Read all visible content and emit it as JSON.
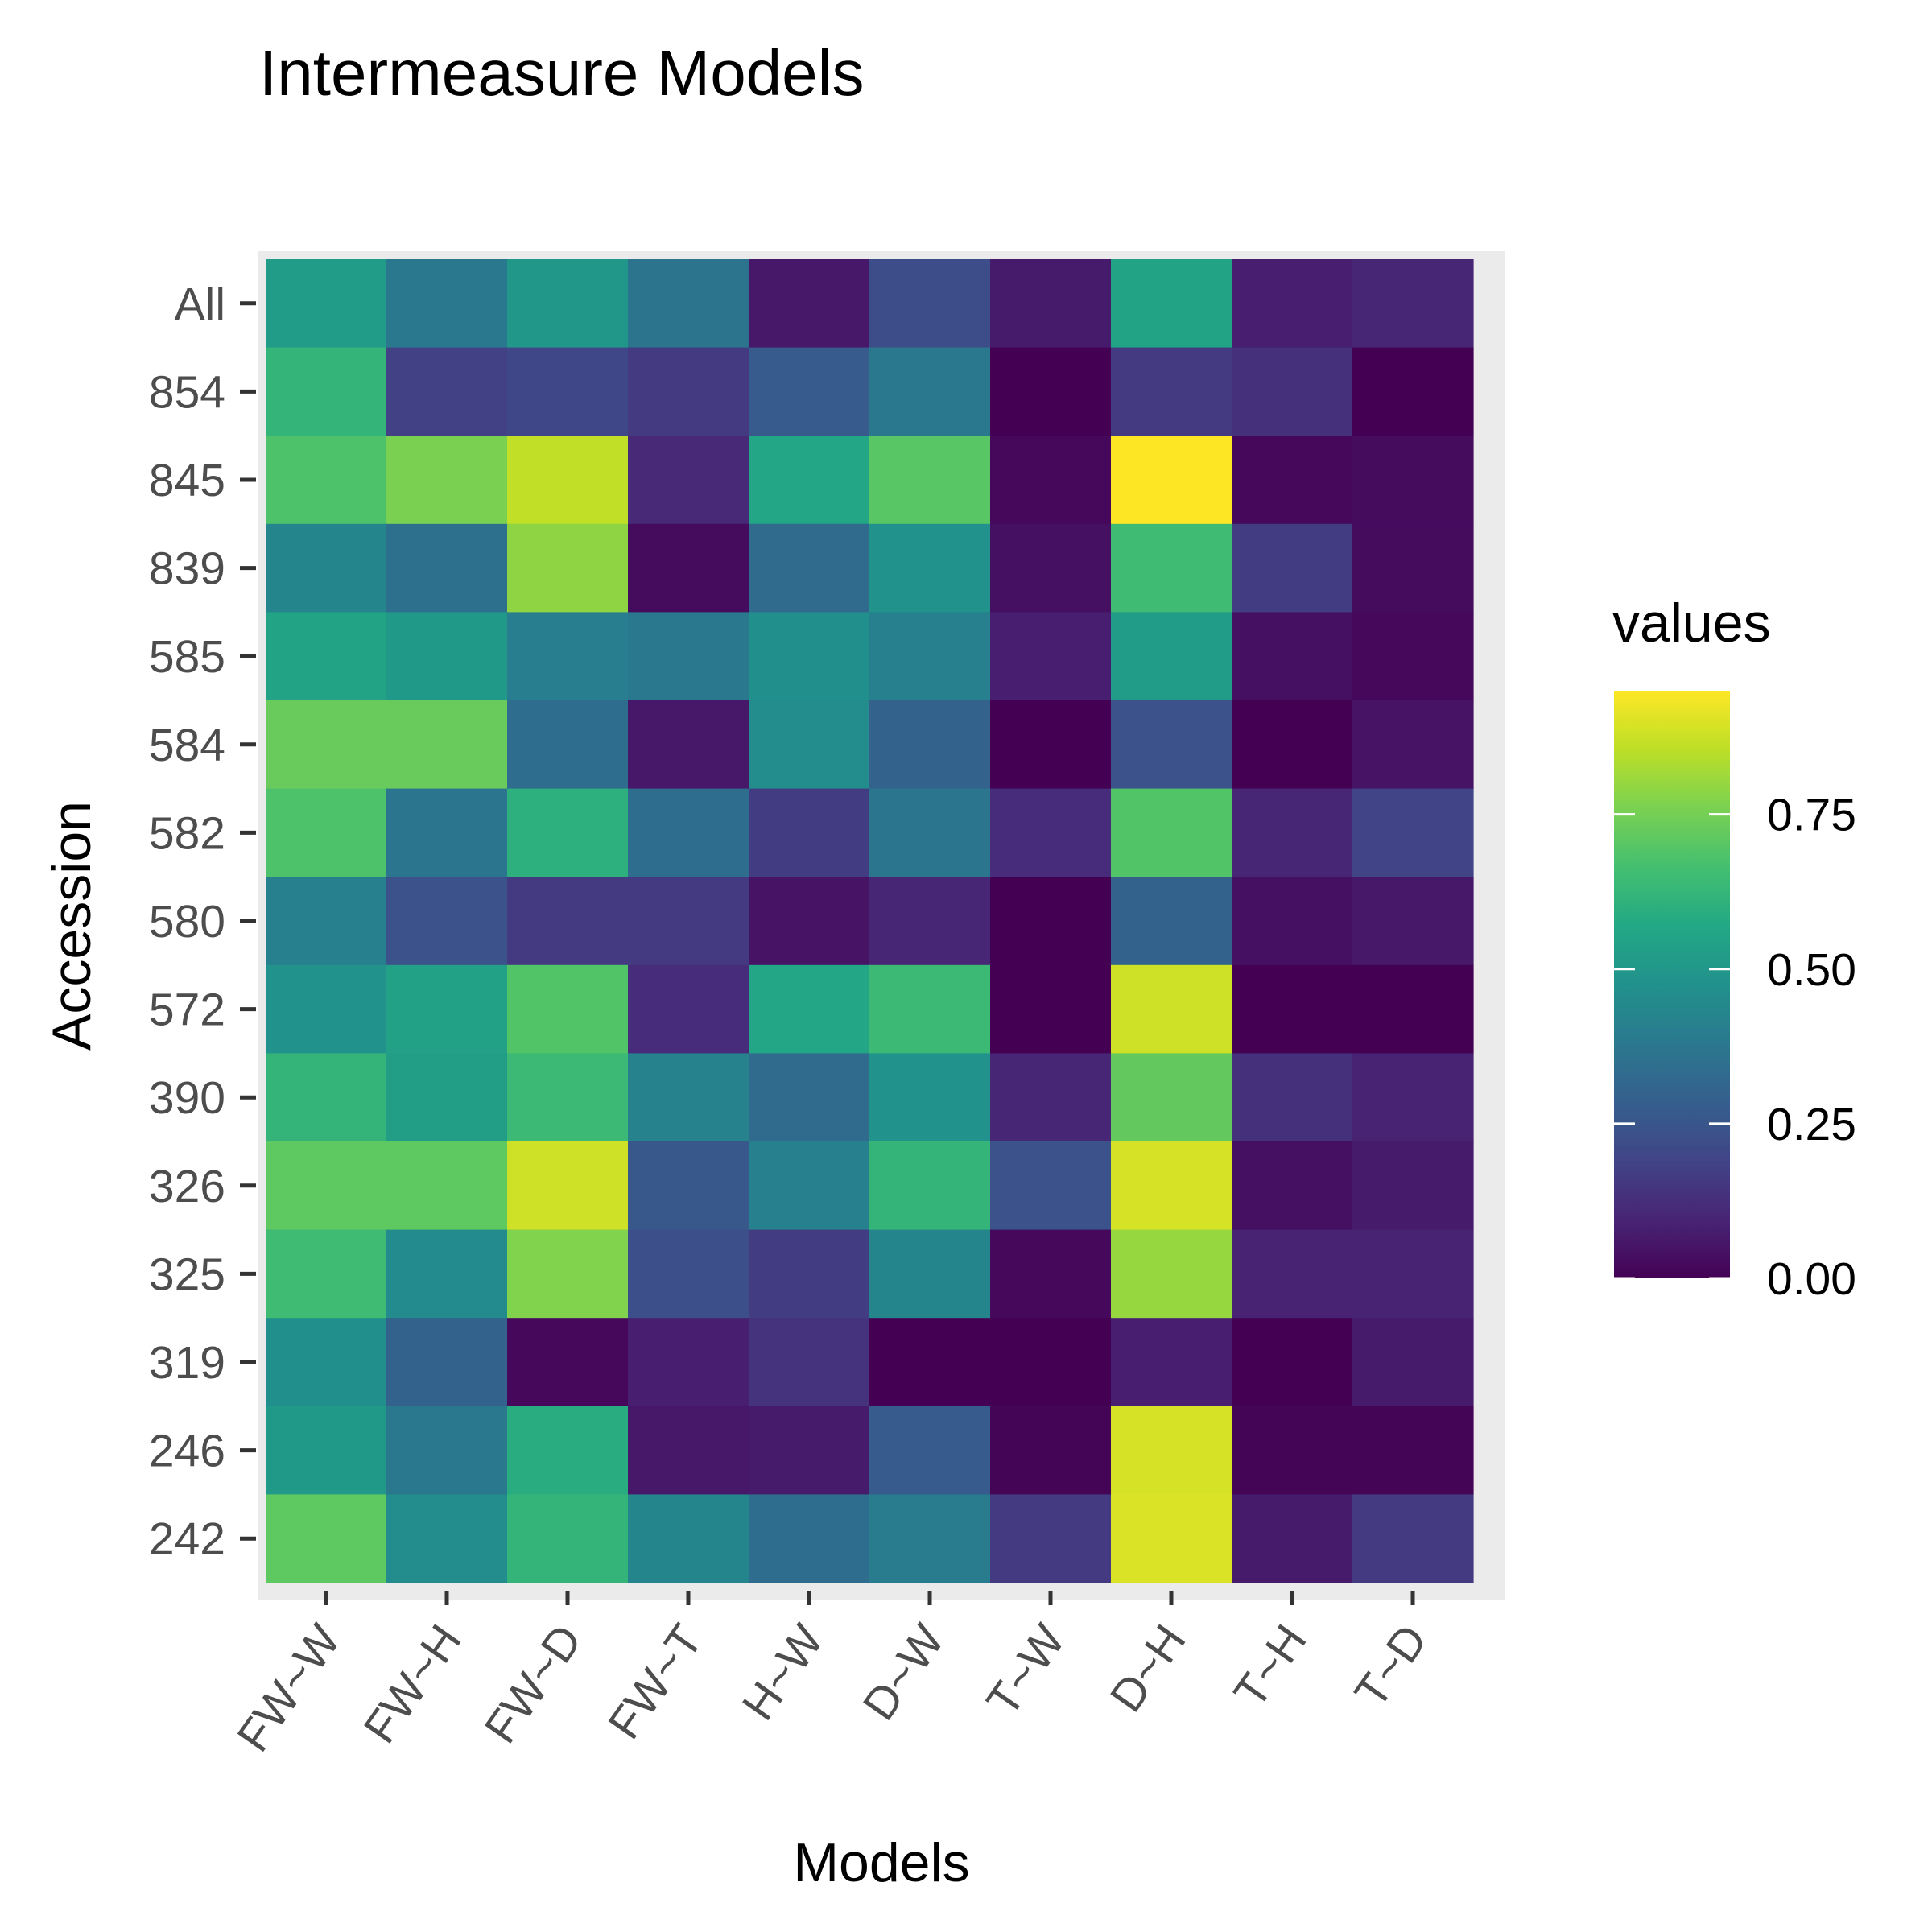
{
  "chart_data": {
    "type": "heatmap",
    "title": "Intermeasure Models",
    "xlabel": "Models",
    "ylabel": "Accession",
    "x_categories": [
      "FW~W",
      "FW~H",
      "FW~D",
      "FW~T",
      "H~W",
      "D~W",
      "T~W",
      "D~H",
      "T~H",
      "T~D"
    ],
    "y_categories": [
      "All",
      "854",
      "845",
      "839",
      "585",
      "584",
      "582",
      "580",
      "572",
      "390",
      "326",
      "325",
      "319",
      "246",
      "242"
    ],
    "values": [
      [
        0.52,
        0.38,
        0.5,
        0.36,
        0.06,
        0.22,
        0.07,
        0.55,
        0.08,
        0.1
      ],
      [
        0.62,
        0.18,
        0.2,
        0.16,
        0.27,
        0.38,
        0.0,
        0.16,
        0.13,
        0.0
      ],
      [
        0.68,
        0.76,
        0.86,
        0.11,
        0.56,
        0.7,
        0.02,
        0.95,
        0.02,
        0.03
      ],
      [
        0.43,
        0.35,
        0.79,
        0.03,
        0.33,
        0.48,
        0.04,
        0.65,
        0.17,
        0.03
      ],
      [
        0.55,
        0.51,
        0.4,
        0.38,
        0.47,
        0.41,
        0.08,
        0.52,
        0.04,
        0.02
      ],
      [
        0.73,
        0.73,
        0.34,
        0.06,
        0.46,
        0.3,
        0.0,
        0.24,
        0.0,
        0.05
      ],
      [
        0.68,
        0.37,
        0.6,
        0.34,
        0.17,
        0.37,
        0.12,
        0.69,
        0.1,
        0.19
      ],
      [
        0.41,
        0.24,
        0.16,
        0.16,
        0.05,
        0.1,
        0.0,
        0.3,
        0.04,
        0.06
      ],
      [
        0.48,
        0.54,
        0.69,
        0.12,
        0.56,
        0.64,
        0.0,
        0.88,
        0.0,
        0.0
      ],
      [
        0.62,
        0.53,
        0.64,
        0.42,
        0.33,
        0.48,
        0.1,
        0.72,
        0.13,
        0.09
      ],
      [
        0.71,
        0.71,
        0.88,
        0.26,
        0.41,
        0.62,
        0.24,
        0.89,
        0.04,
        0.07
      ],
      [
        0.65,
        0.45,
        0.77,
        0.23,
        0.17,
        0.43,
        0.02,
        0.8,
        0.09,
        0.09
      ],
      [
        0.47,
        0.3,
        0.02,
        0.08,
        0.14,
        0.0,
        0.0,
        0.08,
        0.0,
        0.07
      ],
      [
        0.51,
        0.38,
        0.59,
        0.06,
        0.07,
        0.27,
        0.01,
        0.89,
        0.01,
        0.01
      ],
      [
        0.71,
        0.46,
        0.62,
        0.43,
        0.34,
        0.39,
        0.16,
        0.9,
        0.07,
        0.16
      ]
    ],
    "color_scale": "viridis",
    "color_limits": [
      0,
      0.95
    ],
    "legend": {
      "title": "values",
      "ticks": [
        0.0,
        0.25,
        0.5,
        0.75
      ],
      "tick_labels": [
        "0.00",
        "0.25",
        "0.50",
        "0.75"
      ],
      "placement": "right"
    },
    "panel_background": "#ebebeb",
    "grid": true
  }
}
